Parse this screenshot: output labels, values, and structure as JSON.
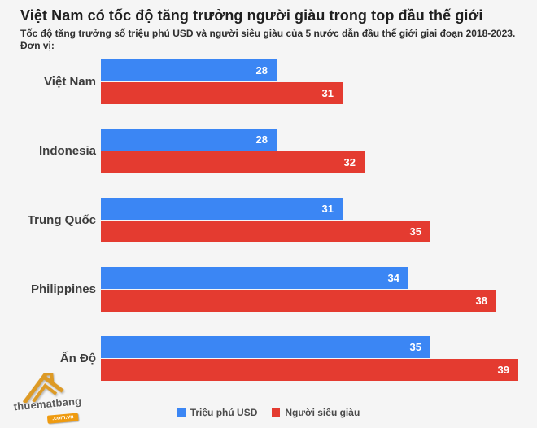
{
  "header": {
    "title": "Việt Nam có tốc độ tăng trưởng người giàu trong top đầu thế giới",
    "subtitle": "Tốc độ tăng trưởng số triệu phú USD và người siêu giàu của 5 nước dẫn đầu thế giới giai đoạn 2018-2023. Đơn vị:"
  },
  "chart_data": {
    "type": "bar",
    "orientation": "horizontal",
    "title": "Việt Nam có tốc độ tăng trưởng người giàu trong top đầu thế giới",
    "subtitle": "Tốc độ tăng trưởng số triệu phú USD và người siêu giàu của 5 nước dẫn đầu thế giới giai đoạn 2018-2023. Đơn vị:",
    "categories": [
      "Việt Nam",
      "Indonesia",
      "Trung Quốc",
      "Philippines",
      "Ấn Độ"
    ],
    "series": [
      {
        "name": "Triệu phú USD",
        "color": "#3b86f4",
        "values": [
          28,
          28,
          31,
          34,
          35
        ]
      },
      {
        "name": "Người siêu giàu",
        "color": "#e43b30",
        "values": [
          31,
          32,
          35,
          38,
          39
        ]
      }
    ],
    "xlim": [
      20,
      40
    ],
    "grid": false,
    "axis_visible": false,
    "legend_position": "bottom",
    "value_labels": "inside-end"
  },
  "watermark": {
    "brand": "thuematbang",
    "domain": ".com.vn",
    "accent_color": "#ef9b10",
    "icon": "house-roof-icon"
  }
}
